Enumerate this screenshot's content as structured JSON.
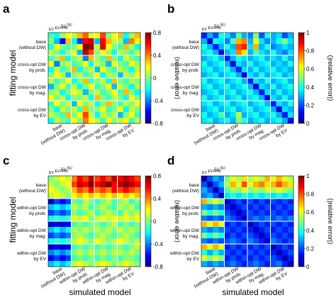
{
  "figure": {
    "row_label": "fitting model",
    "col_label": "simulated model",
    "group_labels": [
      [
        "base",
        "(without DW)"
      ],
      [
        "cross-opt DW",
        "by prob."
      ],
      [
        "cross-opt DW",
        "by mag."
      ],
      [
        "cross-opt DW",
        "by EV"
      ]
    ],
    "group_labels_within": [
      [
        "base",
        "(without DW)"
      ],
      [
        "within-opt DW",
        "by prob."
      ],
      [
        "within-opt DW",
        "by mag."
      ],
      [
        "within-opt DW",
        "by EV"
      ]
    ],
    "sub_labels": [
      "EV",
      "EV+PW",
      "EU",
      "SU"
    ]
  },
  "chart_data": [
    {
      "panel": "a",
      "type": "heatmap",
      "cbar_label": "⟨relative error⟩",
      "zlim": [
        -0.8,
        0.8
      ],
      "cbar_ticks": [
        "0.8",
        "0.4",
        "0",
        "-0.4",
        "-0.8"
      ],
      "colormap": "jet",
      "values": [
        [
          -0.1,
          -0.2,
          0.05,
          0.2,
          0.1,
          0.3,
          0.45,
          0.15,
          0.2,
          0.5,
          0.0,
          0.2,
          0.3,
          -0.2,
          0.05,
          0.3
        ],
        [
          0.0,
          -0.3,
          -0.6,
          0.3,
          -0.2,
          -0.5,
          0.6,
          0.7,
          -0.3,
          0.6,
          0.3,
          0.1,
          0.05,
          -0.3,
          0.4,
          0.2
        ],
        [
          -0.15,
          0.2,
          0.0,
          -0.1,
          0.0,
          0.2,
          0.8,
          0.75,
          0.1,
          0.65,
          0.2,
          0.0,
          -0.1,
          0.3,
          0.05,
          -0.2
        ],
        [
          0.1,
          0.0,
          -0.2,
          0.05,
          0.15,
          -0.3,
          0.7,
          0.5,
          0.0,
          0.2,
          0.05,
          -0.2,
          0.1,
          0.0,
          -0.1,
          0.1
        ],
        [
          -0.1,
          0.05,
          0.3,
          -0.2,
          0.0,
          0.1,
          -0.4,
          0.3,
          0.05,
          -0.1,
          0.3,
          0.0,
          -0.2,
          0.15,
          0.0,
          -0.1
        ],
        [
          0.2,
          -0.4,
          0.0,
          0.1,
          -0.1,
          0.0,
          0.2,
          -0.2,
          0.1,
          0.0,
          -0.3,
          0.2,
          0.0,
          -0.1,
          0.2,
          0.05
        ],
        [
          -0.2,
          0.1,
          -0.1,
          0.0,
          0.3,
          -0.2,
          0.0,
          0.1,
          -0.3,
          0.2,
          0.0,
          -0.1,
          0.1,
          0.0,
          -0.2,
          0.1
        ],
        [
          0.0,
          0.2,
          0.1,
          -0.3,
          0.0,
          0.1,
          -0.1,
          0.0,
          0.2,
          -0.2,
          0.1,
          0.0,
          -0.3,
          0.1,
          0.0,
          0.2
        ],
        [
          0.1,
          -0.1,
          0.0,
          0.2,
          -0.2,
          0.0,
          0.3,
          -0.1,
          0.0,
          0.1,
          -0.2,
          0.3,
          0.0,
          -0.1,
          0.1,
          0.0
        ],
        [
          -0.3,
          0.0,
          0.2,
          -0.1,
          0.1,
          -0.2,
          0.0,
          0.2,
          -0.1,
          0.0,
          0.2,
          -0.3,
          0.1,
          0.0,
          -0.2,
          0.1
        ],
        [
          0.0,
          0.1,
          -0.2,
          0.0,
          0.2,
          0.1,
          -0.3,
          0.0,
          0.1,
          -0.1,
          0.0,
          0.2,
          -0.1,
          0.3,
          0.0,
          -0.2
        ],
        [
          0.2,
          0.0,
          0.1,
          -0.2,
          0.0,
          0.0,
          0.1,
          -0.2,
          0.3,
          0.0,
          -0.1,
          0.1,
          0.0,
          -0.2,
          0.2,
          0.0
        ],
        [
          -0.1,
          0.2,
          0.0,
          0.1,
          -0.3,
          0.2,
          0.0,
          0.1,
          -0.2,
          0.0,
          0.3,
          0.0,
          -0.1,
          0.1,
          0.0,
          0.2
        ],
        [
          0.0,
          -0.2,
          0.1,
          0.0,
          0.1,
          -0.1,
          0.3,
          0.0,
          0.0,
          0.2,
          -0.1,
          0.0,
          0.2,
          -0.2,
          0.1,
          0.0
        ],
        [
          0.1,
          0.0,
          -0.1,
          0.3,
          0.0,
          0.2,
          0.5,
          0.1,
          -0.2,
          0.1,
          0.0,
          0.1,
          -0.3,
          0.0,
          0.2,
          -0.1
        ],
        [
          -0.2,
          0.1,
          0.0,
          -0.1,
          0.2,
          0.0,
          0.4,
          0.2,
          0.1,
          -0.1,
          0.2,
          0.0,
          0.1,
          0.2,
          -0.1,
          0.1
        ]
      ]
    },
    {
      "panel": "b",
      "type": "heatmap",
      "cbar_label": "⟨|relative error|⟩",
      "zlim": [
        0,
        1
      ],
      "cbar_ticks": [
        "1",
        "0.8",
        "0.6",
        "0.4",
        "0.2",
        "0"
      ],
      "colormap": "jet",
      "values": [
        [
          0.15,
          0.3,
          0.2,
          0.4,
          0.35,
          0.25,
          0.45,
          0.3,
          0.25,
          0.5,
          0.2,
          0.4,
          0.3,
          0.35,
          0.2,
          0.3
        ],
        [
          0.3,
          0.1,
          0.4,
          0.35,
          0.25,
          0.45,
          0.7,
          0.75,
          0.3,
          0.6,
          0.35,
          0.25,
          0.3,
          0.4,
          0.5,
          0.35
        ],
        [
          0.4,
          0.3,
          0.15,
          0.3,
          0.4,
          0.3,
          0.8,
          0.85,
          0.35,
          0.7,
          0.3,
          0.4,
          0.25,
          0.3,
          0.35,
          0.3
        ],
        [
          0.35,
          0.4,
          0.3,
          0.1,
          0.3,
          0.35,
          0.75,
          0.65,
          0.3,
          0.45,
          0.35,
          0.3,
          0.4,
          0.3,
          0.25,
          0.35
        ],
        [
          0.3,
          0.35,
          0.4,
          0.3,
          0.15,
          0.3,
          0.4,
          0.35,
          0.3,
          0.35,
          0.4,
          0.3,
          0.35,
          0.3,
          0.4,
          0.3
        ],
        [
          0.4,
          0.3,
          0.35,
          0.4,
          0.3,
          0.1,
          0.35,
          0.3,
          0.4,
          0.3,
          0.35,
          0.4,
          0.3,
          0.35,
          0.3,
          0.4
        ],
        [
          0.35,
          0.4,
          0.3,
          0.35,
          0.4,
          0.3,
          0.15,
          0.35,
          0.3,
          0.4,
          0.3,
          0.35,
          0.4,
          0.3,
          0.35,
          0.3
        ],
        [
          0.3,
          0.35,
          0.4,
          0.3,
          0.35,
          0.4,
          0.3,
          0.1,
          0.35,
          0.3,
          0.4,
          0.3,
          0.35,
          0.4,
          0.3,
          0.35
        ],
        [
          0.4,
          0.3,
          0.35,
          0.4,
          0.3,
          0.35,
          0.4,
          0.3,
          0.15,
          0.35,
          0.3,
          0.4,
          0.3,
          0.35,
          0.4,
          0.3
        ],
        [
          0.35,
          0.4,
          0.3,
          0.35,
          0.4,
          0.3,
          0.35,
          0.4,
          0.3,
          0.1,
          0.35,
          0.3,
          0.4,
          0.3,
          0.35,
          0.4
        ],
        [
          0.3,
          0.35,
          0.4,
          0.3,
          0.35,
          0.4,
          0.3,
          0.35,
          0.4,
          0.3,
          0.15,
          0.35,
          0.3,
          0.4,
          0.3,
          0.35
        ],
        [
          0.4,
          0.3,
          0.35,
          0.4,
          0.3,
          0.35,
          0.4,
          0.3,
          0.35,
          0.4,
          0.3,
          0.1,
          0.35,
          0.3,
          0.4,
          0.3
        ],
        [
          0.35,
          0.4,
          0.3,
          0.35,
          0.4,
          0.3,
          0.35,
          0.4,
          0.3,
          0.35,
          0.4,
          0.3,
          0.15,
          0.35,
          0.3,
          0.4
        ],
        [
          0.3,
          0.35,
          0.4,
          0.3,
          0.35,
          0.4,
          0.3,
          0.35,
          0.4,
          0.3,
          0.35,
          0.4,
          0.3,
          0.1,
          0.35,
          0.3
        ],
        [
          0.4,
          0.3,
          0.35,
          0.45,
          0.3,
          0.35,
          0.55,
          0.3,
          0.35,
          0.4,
          0.3,
          0.35,
          0.4,
          0.3,
          0.15,
          0.35
        ],
        [
          0.35,
          0.4,
          0.3,
          0.35,
          0.4,
          0.3,
          0.5,
          0.4,
          0.3,
          0.35,
          0.4,
          0.3,
          0.35,
          0.4,
          0.3,
          0.1
        ]
      ]
    },
    {
      "panel": "c",
      "type": "heatmap",
      "cbar_label": "⟨relative error⟩",
      "zlim": [
        -0.8,
        0.8
      ],
      "cbar_ticks": [
        "0.8",
        "0.4",
        "0",
        "-0.4",
        "-0.8"
      ],
      "colormap": "jet",
      "values": [
        [
          0.0,
          0.1,
          0.2,
          0.1,
          0.4,
          0.6,
          0.5,
          0.7,
          0.5,
          0.6,
          0.5,
          0.7,
          0.6,
          0.7,
          0.6,
          0.5
        ],
        [
          0.1,
          0.0,
          0.1,
          0.2,
          0.5,
          0.7,
          0.6,
          0.8,
          0.6,
          0.7,
          0.8,
          0.6,
          0.7,
          0.8,
          0.7,
          0.6
        ],
        [
          0.2,
          0.1,
          0.0,
          0.1,
          0.3,
          0.5,
          0.4,
          0.6,
          0.4,
          0.5,
          0.4,
          0.6,
          0.5,
          0.6,
          0.5,
          0.4
        ],
        [
          0.1,
          0.2,
          0.1,
          0.0,
          0.2,
          0.3,
          0.2,
          0.3,
          0.2,
          0.3,
          0.2,
          0.3,
          0.2,
          0.3,
          0.2,
          0.3
        ],
        [
          -0.7,
          -0.5,
          -0.6,
          -0.5,
          0.0,
          -0.1,
          0.1,
          0.0,
          -0.1,
          0.0,
          0.1,
          -0.1,
          0.0,
          0.1,
          -0.1,
          0.0
        ],
        [
          -0.3,
          -0.2,
          -0.3,
          -0.2,
          0.1,
          0.0,
          0.1,
          -0.1,
          0.0,
          0.1,
          0.0,
          -0.1,
          0.1,
          0.0,
          0.1,
          -0.1
        ],
        [
          -0.5,
          -0.4,
          -0.5,
          -0.4,
          0.0,
          -0.1,
          0.0,
          0.1,
          -0.1,
          0.0,
          0.1,
          0.0,
          -0.1,
          0.1,
          0.0,
          0.1
        ],
        [
          -0.2,
          -0.1,
          -0.2,
          -0.1,
          0.2,
          0.1,
          0.2,
          0.0,
          0.1,
          0.2,
          0.1,
          0.2,
          0.1,
          0.2,
          0.1,
          0.2
        ],
        [
          -0.7,
          -0.6,
          -0.7,
          -0.6,
          -0.1,
          0.0,
          -0.1,
          0.0,
          0.0,
          -0.1,
          0.0,
          0.1,
          -0.1,
          0.0,
          -0.1,
          0.0
        ],
        [
          -0.3,
          -0.2,
          -0.3,
          -0.2,
          0.1,
          0.0,
          0.1,
          0.0,
          0.1,
          0.0,
          0.1,
          0.0,
          0.1,
          0.0,
          0.1,
          0.0
        ],
        [
          -0.5,
          -0.4,
          -0.5,
          -0.4,
          0.0,
          0.1,
          0.0,
          -0.1,
          0.0,
          0.1,
          0.0,
          -0.1,
          0.0,
          0.1,
          0.0,
          -0.1
        ],
        [
          -0.2,
          -0.1,
          -0.2,
          -0.1,
          0.1,
          0.2,
          0.1,
          0.0,
          0.2,
          0.1,
          0.0,
          0.1,
          0.2,
          0.1,
          0.0,
          0.1
        ],
        [
          -0.7,
          -0.6,
          -0.7,
          -0.6,
          -0.1,
          0.0,
          -0.1,
          0.0,
          -0.1,
          0.0,
          -0.1,
          0.0,
          0.0,
          -0.1,
          0.0,
          0.1
        ],
        [
          -0.4,
          -0.3,
          -0.4,
          -0.3,
          0.0,
          0.1,
          0.0,
          0.1,
          0.0,
          0.1,
          0.0,
          0.1,
          0.1,
          0.0,
          0.1,
          0.0
        ],
        [
          -0.6,
          -0.5,
          -0.6,
          -0.5,
          -0.1,
          0.0,
          -0.1,
          0.0,
          -0.1,
          0.0,
          -0.1,
          0.0,
          -0.1,
          0.0,
          0.0,
          -0.1
        ],
        [
          -0.3,
          -0.2,
          -0.3,
          -0.2,
          0.1,
          0.2,
          0.1,
          0.0,
          0.1,
          0.2,
          0.1,
          0.0,
          0.1,
          0.2,
          0.1,
          0.0
        ]
      ]
    },
    {
      "panel": "d",
      "type": "heatmap",
      "cbar_label": "⟨|relative error|⟩",
      "zlim": [
        0,
        1
      ],
      "cbar_ticks": [
        "1",
        "0.8",
        "0.6",
        "0.4",
        "0.2",
        "0"
      ],
      "colormap": "jet",
      "values": [
        [
          0.05,
          0.2,
          0.3,
          0.25,
          0.5,
          0.6,
          0.55,
          0.65,
          0.55,
          0.6,
          0.55,
          0.7,
          0.6,
          0.7,
          0.6,
          0.55
        ],
        [
          0.2,
          0.05,
          0.2,
          0.3,
          0.55,
          0.7,
          0.6,
          0.8,
          0.6,
          0.7,
          0.75,
          0.65,
          0.7,
          0.8,
          0.7,
          0.65
        ],
        [
          0.3,
          0.2,
          0.05,
          0.2,
          0.45,
          0.55,
          0.5,
          0.6,
          0.5,
          0.55,
          0.5,
          0.6,
          0.55,
          0.6,
          0.55,
          0.5
        ],
        [
          0.25,
          0.3,
          0.2,
          0.05,
          0.35,
          0.4,
          0.35,
          0.4,
          0.35,
          0.4,
          0.35,
          0.4,
          0.35,
          0.4,
          0.35,
          0.4
        ],
        [
          0.7,
          0.5,
          0.6,
          0.5,
          0.05,
          0.15,
          0.2,
          0.15,
          0.2,
          0.15,
          0.2,
          0.15,
          0.2,
          0.15,
          0.2,
          0.15
        ],
        [
          0.3,
          0.25,
          0.3,
          0.25,
          0.15,
          0.05,
          0.15,
          0.2,
          0.15,
          0.2,
          0.15,
          0.2,
          0.15,
          0.2,
          0.15,
          0.2
        ],
        [
          0.5,
          0.4,
          0.5,
          0.4,
          0.2,
          0.15,
          0.05,
          0.15,
          0.2,
          0.15,
          0.2,
          0.15,
          0.2,
          0.15,
          0.2,
          0.15
        ],
        [
          0.25,
          0.2,
          0.25,
          0.2,
          0.25,
          0.2,
          0.15,
          0.05,
          0.2,
          0.25,
          0.2,
          0.25,
          0.2,
          0.25,
          0.2,
          0.25
        ],
        [
          0.7,
          0.6,
          0.7,
          0.6,
          0.15,
          0.2,
          0.15,
          0.2,
          0.05,
          0.15,
          0.2,
          0.15,
          0.2,
          0.15,
          0.2,
          0.15
        ],
        [
          0.3,
          0.25,
          0.3,
          0.25,
          0.2,
          0.15,
          0.2,
          0.15,
          0.15,
          0.05,
          0.15,
          0.2,
          0.15,
          0.2,
          0.15,
          0.2
        ],
        [
          0.5,
          0.4,
          0.5,
          0.4,
          0.15,
          0.2,
          0.15,
          0.2,
          0.2,
          0.15,
          0.05,
          0.15,
          0.2,
          0.15,
          0.2,
          0.15
        ],
        [
          0.25,
          0.2,
          0.25,
          0.2,
          0.2,
          0.25,
          0.2,
          0.15,
          0.25,
          0.2,
          0.15,
          0.05,
          0.25,
          0.2,
          0.15,
          0.2
        ],
        [
          0.7,
          0.6,
          0.7,
          0.6,
          0.15,
          0.2,
          0.15,
          0.2,
          0.15,
          0.2,
          0.15,
          0.2,
          0.05,
          0.15,
          0.2,
          0.15
        ],
        [
          0.4,
          0.3,
          0.4,
          0.3,
          0.2,
          0.15,
          0.2,
          0.15,
          0.2,
          0.15,
          0.2,
          0.15,
          0.15,
          0.05,
          0.15,
          0.2
        ],
        [
          0.6,
          0.5,
          0.6,
          0.5,
          0.15,
          0.2,
          0.15,
          0.2,
          0.15,
          0.2,
          0.15,
          0.2,
          0.2,
          0.15,
          0.05,
          0.15
        ],
        [
          0.3,
          0.25,
          0.3,
          0.25,
          0.2,
          0.25,
          0.2,
          0.15,
          0.2,
          0.25,
          0.2,
          0.15,
          0.2,
          0.25,
          0.15,
          0.05
        ]
      ]
    }
  ]
}
